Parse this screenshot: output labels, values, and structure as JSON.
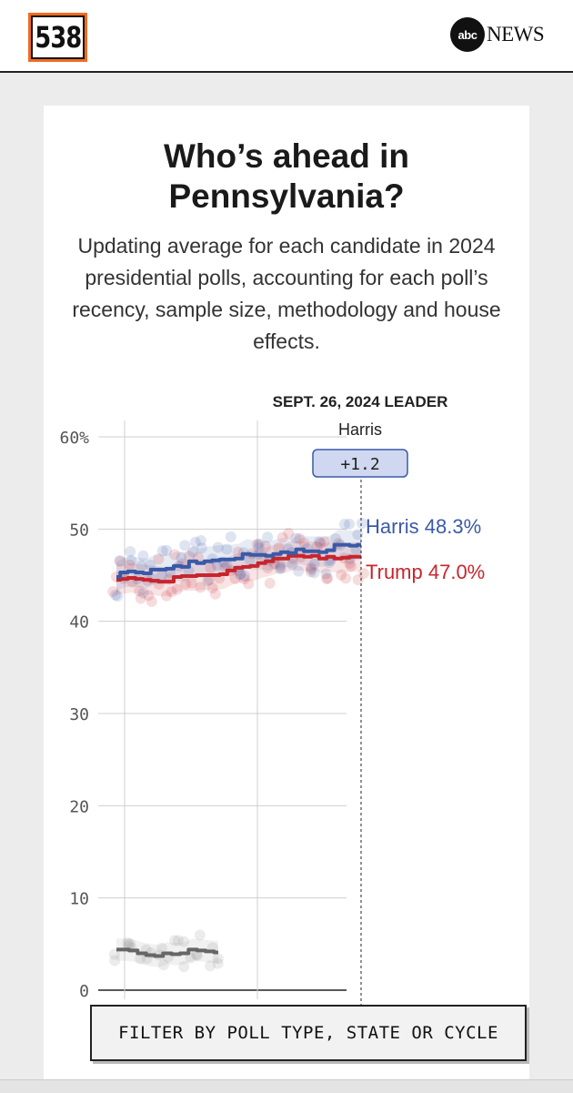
{
  "header": {
    "logo_text": "538",
    "abc_circle_text": "abc",
    "abc_news_text": "NEWS"
  },
  "card": {
    "title_line1": "Who’s ahead in",
    "title_line2": "Pennsylvania?",
    "subtitle": "Updating average for each candidate in 2024 presidential polls, accounting for each poll’s recency, sample size, methodology and house effects."
  },
  "filter_button_label": "FILTER BY POLL TYPE, STATE OR CYCLE",
  "chart_data": {
    "type": "line",
    "ylim": [
      0,
      60
    ],
    "yticks": [
      0,
      10,
      20,
      30,
      40,
      50,
      60
    ],
    "ytick_labels": [
      "0",
      "10",
      "20",
      "30",
      "40",
      "50",
      "60%"
    ],
    "grid": true,
    "leader": {
      "date_label": "SEPT. 26, 2024 LEADER",
      "name": "Harris",
      "margin_label": "+1.2"
    },
    "colors": {
      "harris": "#3a5aa8",
      "trump": "#c8252c",
      "other": "#666666"
    },
    "series": [
      {
        "name": "Harris",
        "end_label": "Harris 48.3%",
        "color": "#3a5aa8",
        "values": [
          44.8,
          45.3,
          45.4,
          45.3,
          45.2,
          45.6,
          45.6,
          45.7,
          46.0,
          45.9,
          46.5,
          46.3,
          46.5,
          46.6,
          46.7,
          46.7,
          46.8,
          47.3,
          47.2,
          47.2,
          47.1,
          47.3,
          47.5,
          47.4,
          47.8,
          47.6,
          47.6,
          47.5,
          47.7,
          48.3,
          48.3,
          48.2,
          48.3
        ]
      },
      {
        "name": "Trump",
        "end_label": "Trump 47.0%",
        "color": "#c8252c",
        "values": [
          44.5,
          44.6,
          44.7,
          44.6,
          44.5,
          44.4,
          44.3,
          44.3,
          44.8,
          44.9,
          44.9,
          45.0,
          45.0,
          45.0,
          45.1,
          45.5,
          45.8,
          45.9,
          46.0,
          46.3,
          46.5,
          46.8,
          46.8,
          47.1,
          47.1,
          47.0,
          47.1,
          46.8,
          47.0,
          46.8,
          46.9,
          47.0,
          47.0
        ]
      },
      {
        "name": "",
        "color": "#666666",
        "values": [
          4.4,
          4.4,
          4.3,
          4.0,
          3.8,
          3.7,
          4.0,
          3.9,
          4.0,
          4.4,
          4.3,
          4.2,
          4.1
        ]
      }
    ]
  }
}
